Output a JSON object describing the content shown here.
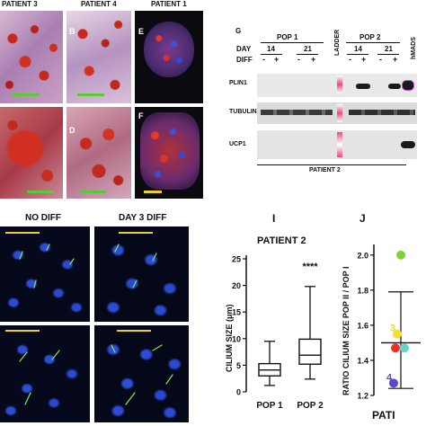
{
  "histology": {
    "header_patient3": "PATIENT 3",
    "header_patient4": "PATIENT 4",
    "header_patient1": "PATIENT 1",
    "label_B": "B",
    "label_D": "D",
    "label_E": "E",
    "label_F": "F"
  },
  "western": {
    "panel_letter": "G",
    "pop1": "POP 1",
    "pop2": "POP 2",
    "day_label": "DAY",
    "diff_label": "DIFF",
    "day14a": "14",
    "day21a": "21",
    "day14b": "14",
    "day21b": "21",
    "minus1": "-",
    "plus1": "+",
    "minus2": "-",
    "plus2": "+",
    "minus3": "-",
    "plus3": "+",
    "minus4": "-",
    "plus4": "+",
    "ladder": "LADDER",
    "hmads": "hMADS",
    "plin1": "PLIN1",
    "tubulin": "TUBULIN βI",
    "ucp1": "UCP1",
    "patient": "PATIENT 2"
  },
  "cilia": {
    "no_diff": "NO DIFF",
    "day3_diff": "DAY 3 DIFF"
  },
  "panel_I": {
    "letter": "I",
    "title": "PATIENT 2",
    "significance": "****",
    "ylabel": "CILIUM SIZE (μm)",
    "yticks": [
      "0",
      "5",
      "10",
      "15",
      "20",
      "25"
    ]
  },
  "panel_J": {
    "letter": "J",
    "ylabel": "RATIO CILIUM SIZE POP II / POP I",
    "yticks": [
      "1.2",
      "1.4",
      "1.6",
      "1.8",
      "2.0"
    ],
    "xlabel": "PATI",
    "point_label_3": "3",
    "point_label_4": "4"
  },
  "chart_data": [
    {
      "type": "box",
      "title": "PATIENT 2",
      "ylabel": "CILIUM SIZE (μm)",
      "ylim": [
        0,
        25
      ],
      "categories": [
        "POP 1",
        "POP 2"
      ],
      "boxes": [
        {
          "name": "POP 1",
          "min": 1.2,
          "q1": 3.0,
          "median": 4.1,
          "q3": 5.3,
          "max": 9.5
        },
        {
          "name": "POP 2",
          "min": 2.4,
          "q1": 5.2,
          "median": 6.9,
          "q3": 9.9,
          "max": 19.8
        }
      ],
      "annotation": "****"
    },
    {
      "type": "scatter",
      "ylabel": "RATIO CILIUM SIZE POP II / POP I",
      "ylim": [
        1.2,
        2.05
      ],
      "xlabel": "PATI",
      "mean": 1.5,
      "error": [
        1.24,
        1.79
      ],
      "points": [
        {
          "label": "",
          "y": 2.0,
          "color": "#7dd43a"
        },
        {
          "label": "3",
          "y": 1.55,
          "color": "#f2e02a"
        },
        {
          "label": "",
          "y": 1.47,
          "color": "#e8332a"
        },
        {
          "label": "",
          "y": 1.47,
          "color": "#66d4c8"
        },
        {
          "label": "4",
          "y": 1.27,
          "color": "#5b4bc8"
        }
      ]
    }
  ]
}
